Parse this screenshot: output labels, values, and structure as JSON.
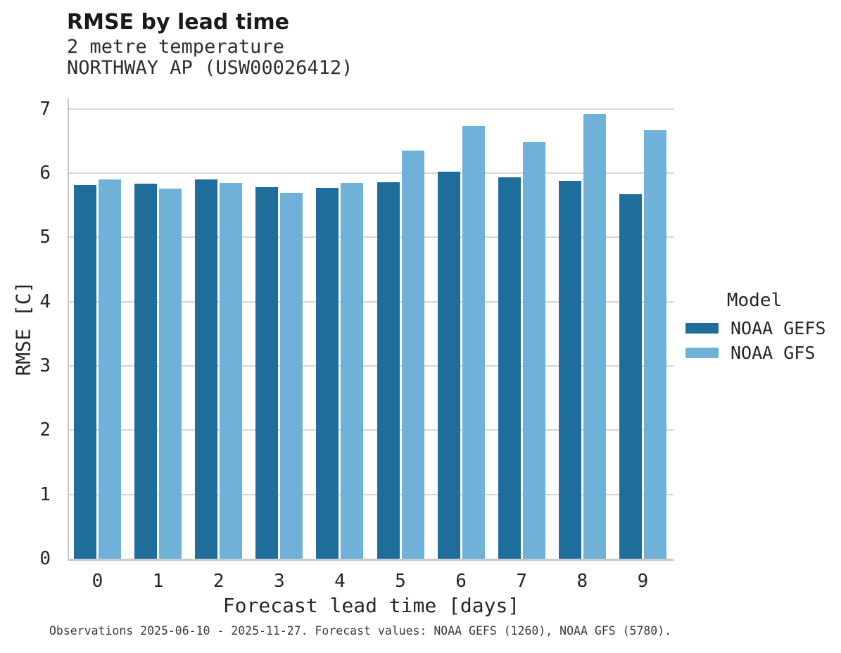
{
  "header": {
    "title": "RMSE by lead time",
    "subtitle_line1": "2 metre temperature",
    "subtitle_line2": "NORTHWAY AP (USW00026412)"
  },
  "chart_data": {
    "type": "bar",
    "title": "RMSE by lead time",
    "subtitle_lines": [
      "2 metre temperature",
      "NORTHWAY AP (USW00026412)"
    ],
    "categories": [
      "0",
      "1",
      "2",
      "3",
      "4",
      "5",
      "6",
      "7",
      "8",
      "9"
    ],
    "series": [
      {
        "name": "NOAA GEFS",
        "color": "#1e6d9b",
        "values": [
          5.81,
          5.84,
          5.9,
          5.78,
          5.77,
          5.86,
          6.02,
          5.93,
          5.88,
          5.67
        ]
      },
      {
        "name": "NOAA GFS",
        "color": "#6fb1d8",
        "values": [
          5.9,
          5.76,
          5.85,
          5.69,
          5.85,
          6.35,
          6.73,
          6.48,
          6.92,
          6.67
        ]
      }
    ],
    "xlabel": "Forecast lead time [days]",
    "ylabel": "RMSE [C]",
    "ylim": [
      0,
      7.16
    ],
    "yticks": [
      0,
      1,
      2,
      3,
      4,
      5,
      6,
      7
    ],
    "grid": true,
    "grid_color": "#d6d6d6",
    "legend_title": "Model",
    "legend_position": "right"
  },
  "footer": {
    "note": "Observations 2025-06-10 - 2025-11-27. Forecast values: NOAA GEFS (1260), NOAA GFS (5780)."
  }
}
